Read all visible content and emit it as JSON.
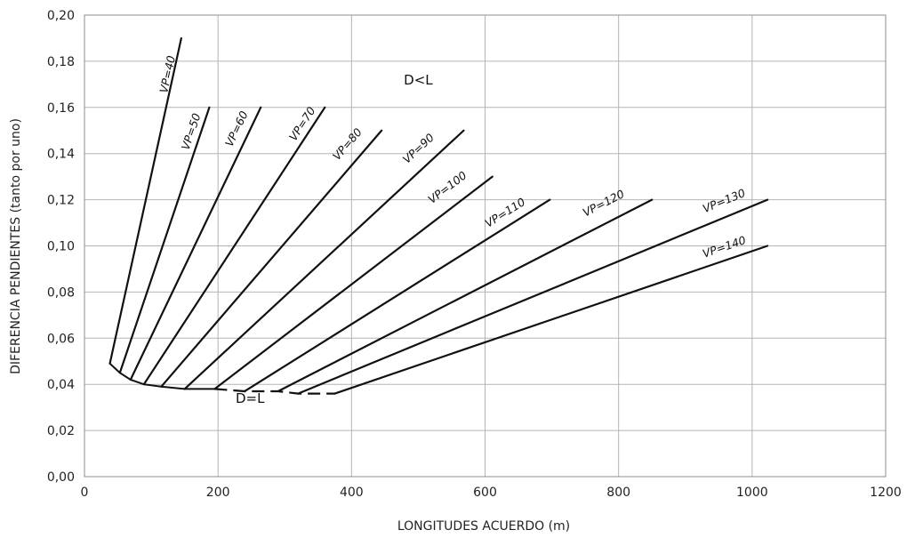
{
  "chart_data": {
    "type": "line",
    "xlabel": "LONGITUDES ACUERDO (m)",
    "ylabel": "DIFERENCIA PENDIENTES (tanto por uno)",
    "xlim": [
      0,
      1200
    ],
    "ylim": [
      0,
      0.2
    ],
    "x_ticks": [
      {
        "value": 0,
        "label": "0"
      },
      {
        "value": 200,
        "label": "200"
      },
      {
        "value": 400,
        "label": "400"
      },
      {
        "value": 600,
        "label": "600"
      },
      {
        "value": 800,
        "label": "800"
      },
      {
        "value": 1000,
        "label": "1000"
      },
      {
        "value": 1200,
        "label": "1200"
      }
    ],
    "y_ticks": [
      {
        "value": 0,
        "label": "0,00"
      },
      {
        "value": 0.02,
        "label": "0,02"
      },
      {
        "value": 0.04,
        "label": "0,04"
      },
      {
        "value": 0.06,
        "label": "0,06"
      },
      {
        "value": 0.08,
        "label": "0,08"
      },
      {
        "value": 0.1,
        "label": "0,10"
      },
      {
        "value": 0.12,
        "label": "0,12"
      },
      {
        "value": 0.14,
        "label": "0,14"
      },
      {
        "value": 0.16,
        "label": "0,16"
      },
      {
        "value": 0.18,
        "label": "0,18"
      },
      {
        "value": 0.2,
        "label": "0,20"
      }
    ],
    "grid": true,
    "series": [
      {
        "name": "VP=40",
        "x": [
          38,
          145
        ],
        "y": [
          0.049,
          0.19
        ],
        "label_at": [
          130,
          0.174
        ]
      },
      {
        "name": "VP=50",
        "x": [
          53,
          187
        ],
        "y": [
          0.045,
          0.16
        ],
        "label_at": [
          165,
          0.149
        ]
      },
      {
        "name": "VP=60",
        "x": [
          69,
          264
        ],
        "y": [
          0.042,
          0.16
        ],
        "label_at": [
          233,
          0.15
        ]
      },
      {
        "name": "VP=70",
        "x": [
          89,
          360
        ],
        "y": [
          0.04,
          0.16
        ],
        "label_at": [
          331,
          0.152
        ]
      },
      {
        "name": "VP=80",
        "x": [
          115,
          445
        ],
        "y": [
          0.039,
          0.15
        ],
        "label_at": [
          398,
          0.143
        ]
      },
      {
        "name": "VP=90",
        "x": [
          150,
          568
        ],
        "y": [
          0.038,
          0.15
        ],
        "label_at": [
          504,
          0.141
        ]
      },
      {
        "name": "VP=100",
        "x": [
          195,
          611
        ],
        "y": [
          0.038,
          0.13
        ],
        "label_at": [
          547,
          0.124
        ]
      },
      {
        "name": "VP=110",
        "x": [
          240,
          697
        ],
        "y": [
          0.037,
          0.12
        ],
        "label_at": [
          633,
          0.113
        ]
      },
      {
        "name": "VP=120",
        "x": [
          290,
          850
        ],
        "y": [
          0.037,
          0.12
        ],
        "label_at": [
          780,
          0.117
        ]
      },
      {
        "name": "VP=130",
        "x": [
          320,
          1023
        ],
        "y": [
          0.036,
          0.12
        ],
        "label_at": [
          960,
          0.118
        ]
      },
      {
        "name": "VP=140",
        "x": [
          375,
          1023
        ],
        "y": [
          0.036,
          0.1
        ],
        "label_at": [
          960,
          0.098
        ]
      }
    ],
    "boundary": {
      "solid_x": [
        38,
        53,
        69,
        89,
        115,
        150,
        195
      ],
      "solid_y": [
        0.049,
        0.045,
        0.042,
        0.04,
        0.039,
        0.038,
        0.038
      ],
      "dashed_x": [
        195,
        240,
        290,
        320,
        375
      ],
      "dashed_y": [
        0.038,
        0.037,
        0.037,
        0.036,
        0.036
      ]
    },
    "annotations": [
      {
        "text": "D<L",
        "x": 500,
        "y": 0.17
      },
      {
        "text": "D=L",
        "x": 248,
        "y": 0.032
      }
    ]
  }
}
